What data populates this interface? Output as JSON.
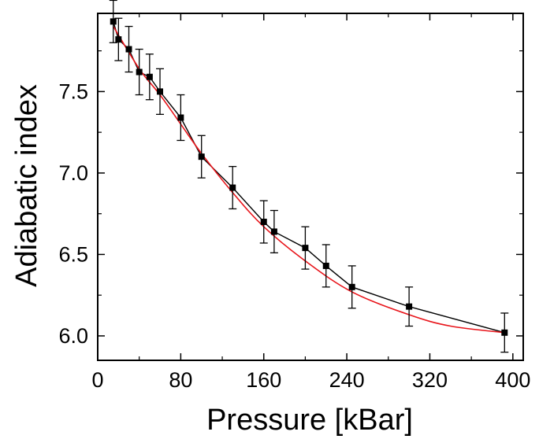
{
  "chart_data": {
    "type": "line",
    "title": "",
    "xlabel": "Pressure [kBar]",
    "ylabel": "Adiabatic index",
    "xlim": [
      0,
      410
    ],
    "ylim": [
      5.85,
      7.98
    ],
    "x_ticks": [
      0,
      80,
      160,
      240,
      320,
      400
    ],
    "x_tick_labels": [
      "0",
      "80",
      "160",
      "240",
      "320",
      "400"
    ],
    "y_ticks": [
      6.0,
      6.5,
      7.0,
      7.5
    ],
    "y_tick_labels": [
      "6.0",
      "6.5",
      "7.0",
      "7.5"
    ],
    "grid": false,
    "legend": "none",
    "series": [
      {
        "style": "markers-with-error-bars-and-line",
        "color": "#000000",
        "points": [
          {
            "x": 15,
            "y": 7.93,
            "err": 0.13
          },
          {
            "x": 20,
            "y": 7.82,
            "err": 0.13
          },
          {
            "x": 30,
            "y": 7.76,
            "err": 0.14
          },
          {
            "x": 40,
            "y": 7.62,
            "err": 0.14
          },
          {
            "x": 50,
            "y": 7.59,
            "err": 0.14
          },
          {
            "x": 60,
            "y": 7.5,
            "err": 0.14
          },
          {
            "x": 80,
            "y": 7.34,
            "err": 0.14
          },
          {
            "x": 100,
            "y": 7.1,
            "err": 0.13
          },
          {
            "x": 130,
            "y": 6.91,
            "err": 0.13
          },
          {
            "x": 160,
            "y": 6.7,
            "err": 0.13
          },
          {
            "x": 170,
            "y": 6.64,
            "err": 0.13
          },
          {
            "x": 200,
            "y": 6.54,
            "err": 0.13
          },
          {
            "x": 220,
            "y": 6.43,
            "err": 0.13
          },
          {
            "x": 245,
            "y": 6.3,
            "err": 0.13
          },
          {
            "x": 300,
            "y": 6.18,
            "err": 0.12
          },
          {
            "x": 392,
            "y": 6.02,
            "err": 0.12
          }
        ]
      },
      {
        "style": "smooth-fit-line",
        "color": "#e8141a",
        "x": [
          15,
          40,
          60,
          80,
          100,
          130,
          160,
          200,
          245,
          300,
          340,
          392
        ],
        "y": [
          7.9,
          7.64,
          7.48,
          7.3,
          7.12,
          6.88,
          6.67,
          6.46,
          6.27,
          6.13,
          6.06,
          6.02
        ]
      }
    ]
  }
}
